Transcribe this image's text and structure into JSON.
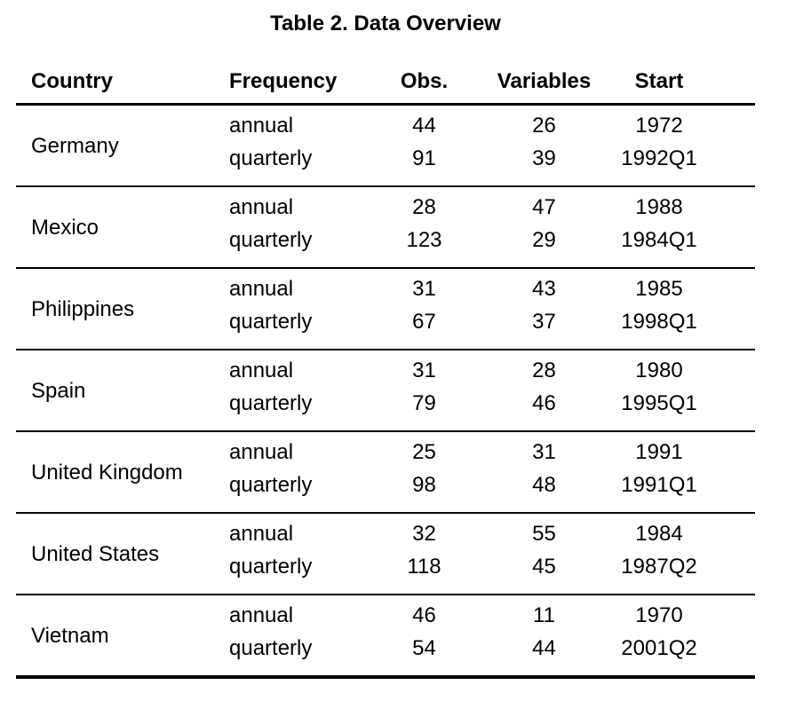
{
  "title": "Table 2. Data Overview",
  "colors": {
    "text": "#000000",
    "background": "#ffffff",
    "rule": "#000000"
  },
  "table": {
    "headers": [
      "Country",
      "Frequency",
      "Obs.",
      "Variables",
      "Start"
    ],
    "groups": [
      {
        "country": "Germany",
        "rows": [
          {
            "frequency": "annual",
            "obs": "44",
            "variables": "26",
            "start": "1972"
          },
          {
            "frequency": "quarterly",
            "obs": "91",
            "variables": "39",
            "start": "1992Q1"
          }
        ]
      },
      {
        "country": "Mexico",
        "rows": [
          {
            "frequency": "annual",
            "obs": "28",
            "variables": "47",
            "start": "1988"
          },
          {
            "frequency": "quarterly",
            "obs": "123",
            "variables": "29",
            "start": "1984Q1"
          }
        ]
      },
      {
        "country": "Philippines",
        "rows": [
          {
            "frequency": "annual",
            "obs": "31",
            "variables": "43",
            "start": "1985"
          },
          {
            "frequency": "quarterly",
            "obs": "67",
            "variables": "37",
            "start": "1998Q1"
          }
        ]
      },
      {
        "country": "Spain",
        "rows": [
          {
            "frequency": "annual",
            "obs": "31",
            "variables": "28",
            "start": "1980"
          },
          {
            "frequency": "quarterly",
            "obs": "79",
            "variables": "46",
            "start": "1995Q1"
          }
        ]
      },
      {
        "country": "United Kingdom",
        "rows": [
          {
            "frequency": "annual",
            "obs": "25",
            "variables": "31",
            "start": "1991"
          },
          {
            "frequency": "quarterly",
            "obs": "98",
            "variables": "48",
            "start": "1991Q1"
          }
        ]
      },
      {
        "country": "United States",
        "rows": [
          {
            "frequency": "annual",
            "obs": "32",
            "variables": "55",
            "start": "1984"
          },
          {
            "frequency": "quarterly",
            "obs": "118",
            "variables": "45",
            "start": "1987Q2"
          }
        ]
      },
      {
        "country": "Vietnam",
        "rows": [
          {
            "frequency": "annual",
            "obs": "46",
            "variables": "11",
            "start": "1970"
          },
          {
            "frequency": "quarterly",
            "obs": "54",
            "variables": "44",
            "start": "2001Q2"
          }
        ]
      }
    ]
  }
}
